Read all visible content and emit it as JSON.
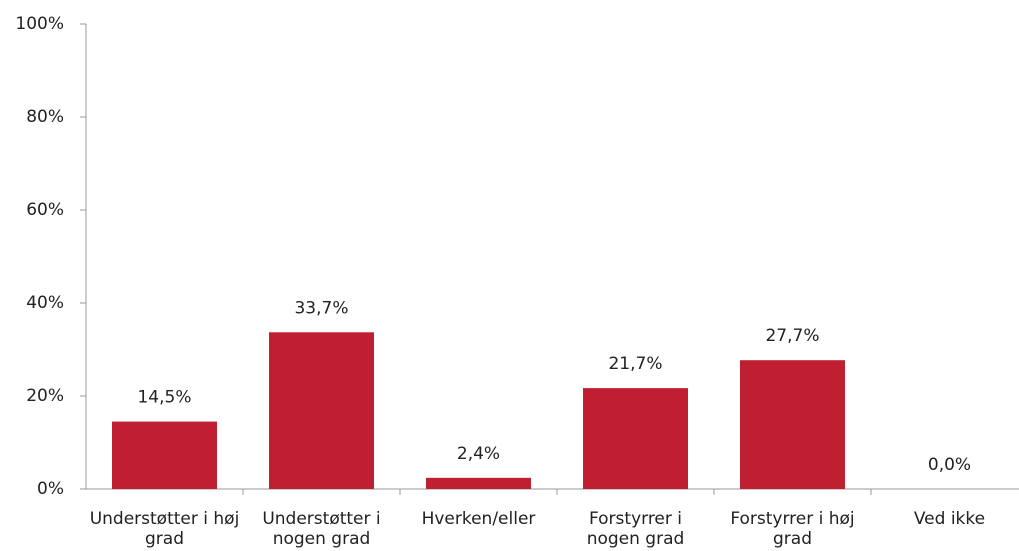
{
  "chart_data": {
    "type": "bar",
    "categories": [
      "Understøtter i høj grad",
      "Understøtter i nogen grad",
      "Hverken/eller",
      "Forstyrrer i nogen grad",
      "Forstyrrer i høj grad",
      "Ved ikke"
    ],
    "values": [
      14.5,
      33.7,
      2.4,
      21.7,
      27.7,
      0.0
    ],
    "value_labels": [
      "14,5%",
      "33,7%",
      "2,4%",
      "21,7%",
      "27,7%",
      "0,0%"
    ],
    "color": "#c01f32",
    "ylim": [
      0,
      100
    ],
    "yticks": [
      {
        "value": 0,
        "label": "0%"
      },
      {
        "value": 20,
        "label": "20%"
      },
      {
        "value": 40,
        "label": "40%"
      },
      {
        "value": 60,
        "label": "60%"
      },
      {
        "value": 80,
        "label": "80%"
      },
      {
        "value": 100,
        "label": "100%"
      }
    ],
    "grid": false
  }
}
